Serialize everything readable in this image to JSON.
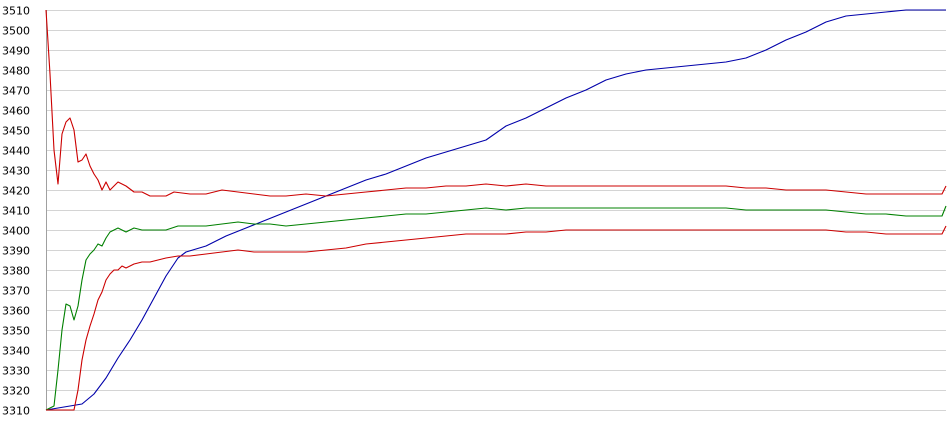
{
  "chart_data": {
    "type": "line",
    "title": "",
    "xlabel": "",
    "ylabel": "",
    "ylim": [
      3310,
      3510
    ],
    "yticks": [
      3510,
      3500,
      3490,
      3480,
      3470,
      3460,
      3450,
      3440,
      3430,
      3420,
      3410,
      3400,
      3390,
      3380,
      3370,
      3360,
      3350,
      3340,
      3330,
      3320,
      3310
    ],
    "grid": true,
    "legend": "none",
    "x_count": 150,
    "series": [
      {
        "color": "#0000aa",
        "points": [
          [
            0,
            3310
          ],
          [
            3,
            3311
          ],
          [
            6,
            3312
          ],
          [
            9,
            3313
          ],
          [
            12,
            3318
          ],
          [
            15,
            3326
          ],
          [
            18,
            3336
          ],
          [
            21,
            3345
          ],
          [
            24,
            3355
          ],
          [
            27,
            3366
          ],
          [
            30,
            3377
          ],
          [
            33,
            3386
          ],
          [
            35,
            3389
          ],
          [
            40,
            3392
          ],
          [
            45,
            3397
          ],
          [
            50,
            3401
          ],
          [
            55,
            3405
          ],
          [
            60,
            3409
          ],
          [
            65,
            3413
          ],
          [
            70,
            3417
          ],
          [
            75,
            3421
          ],
          [
            80,
            3425
          ],
          [
            85,
            3428
          ],
          [
            90,
            3432
          ],
          [
            95,
            3436
          ],
          [
            100,
            3439
          ],
          [
            105,
            3442
          ],
          [
            110,
            3445
          ],
          [
            115,
            3452
          ],
          [
            120,
            3456
          ],
          [
            125,
            3461
          ],
          [
            130,
            3466
          ],
          [
            135,
            3470
          ],
          [
            140,
            3475
          ],
          [
            145,
            3478
          ],
          [
            150,
            3480
          ],
          [
            155,
            3481
          ],
          [
            160,
            3482
          ],
          [
            165,
            3483
          ],
          [
            170,
            3484
          ],
          [
            175,
            3486
          ],
          [
            180,
            3490
          ],
          [
            185,
            3495
          ],
          [
            190,
            3499
          ],
          [
            195,
            3504
          ],
          [
            200,
            3507
          ],
          [
            205,
            3508
          ],
          [
            210,
            3509
          ],
          [
            215,
            3510
          ],
          [
            225,
            3510
          ]
        ]
      },
      {
        "color": "#cc0000",
        "points": [
          [
            0,
            3510
          ],
          [
            1,
            3478
          ],
          [
            2,
            3440
          ],
          [
            3,
            3423
          ],
          [
            4,
            3448
          ],
          [
            5,
            3454
          ],
          [
            6,
            3456
          ],
          [
            7,
            3450
          ],
          [
            8,
            3434
          ],
          [
            9,
            3435
          ],
          [
            10,
            3438
          ],
          [
            11,
            3432
          ],
          [
            12,
            3428
          ],
          [
            13,
            3425
          ],
          [
            14,
            3420
          ],
          [
            15,
            3424
          ],
          [
            16,
            3420
          ],
          [
            17,
            3422
          ],
          [
            18,
            3424
          ],
          [
            20,
            3422
          ],
          [
            22,
            3419
          ],
          [
            24,
            3419
          ],
          [
            26,
            3417
          ],
          [
            30,
            3417
          ],
          [
            32,
            3419
          ],
          [
            36,
            3418
          ],
          [
            40,
            3418
          ],
          [
            44,
            3420
          ],
          [
            48,
            3419
          ],
          [
            52,
            3418
          ],
          [
            56,
            3417
          ],
          [
            60,
            3417
          ],
          [
            65,
            3418
          ],
          [
            70,
            3417
          ],
          [
            75,
            3418
          ],
          [
            80,
            3419
          ],
          [
            85,
            3420
          ],
          [
            90,
            3421
          ],
          [
            95,
            3421
          ],
          [
            100,
            3422
          ],
          [
            105,
            3422
          ],
          [
            110,
            3423
          ],
          [
            115,
            3422
          ],
          [
            120,
            3423
          ],
          [
            125,
            3422
          ],
          [
            130,
            3422
          ],
          [
            135,
            3422
          ],
          [
            140,
            3422
          ],
          [
            145,
            3422
          ],
          [
            150,
            3422
          ],
          [
            155,
            3422
          ],
          [
            160,
            3422
          ],
          [
            165,
            3422
          ],
          [
            170,
            3422
          ],
          [
            175,
            3421
          ],
          [
            180,
            3421
          ],
          [
            185,
            3420
          ],
          [
            190,
            3420
          ],
          [
            195,
            3420
          ],
          [
            200,
            3419
          ],
          [
            205,
            3418
          ],
          [
            210,
            3418
          ],
          [
            215,
            3418
          ],
          [
            224,
            3418
          ],
          [
            225,
            3422
          ]
        ]
      },
      {
        "color": "#008000",
        "points": [
          [
            0,
            3310
          ],
          [
            2,
            3312
          ],
          [
            3,
            3330
          ],
          [
            4,
            3350
          ],
          [
            5,
            3363
          ],
          [
            6,
            3362
          ],
          [
            7,
            3355
          ],
          [
            8,
            3362
          ],
          [
            9,
            3375
          ],
          [
            10,
            3385
          ],
          [
            11,
            3388
          ],
          [
            12,
            3390
          ],
          [
            13,
            3393
          ],
          [
            14,
            3392
          ],
          [
            15,
            3396
          ],
          [
            16,
            3399
          ],
          [
            17,
            3400
          ],
          [
            18,
            3401
          ],
          [
            20,
            3399
          ],
          [
            22,
            3401
          ],
          [
            24,
            3400
          ],
          [
            26,
            3400
          ],
          [
            30,
            3400
          ],
          [
            33,
            3402
          ],
          [
            36,
            3402
          ],
          [
            40,
            3402
          ],
          [
            44,
            3403
          ],
          [
            48,
            3404
          ],
          [
            52,
            3403
          ],
          [
            56,
            3403
          ],
          [
            60,
            3402
          ],
          [
            65,
            3403
          ],
          [
            70,
            3404
          ],
          [
            75,
            3405
          ],
          [
            80,
            3406
          ],
          [
            85,
            3407
          ],
          [
            90,
            3408
          ],
          [
            95,
            3408
          ],
          [
            100,
            3409
          ],
          [
            105,
            3410
          ],
          [
            110,
            3411
          ],
          [
            115,
            3410
          ],
          [
            120,
            3411
          ],
          [
            125,
            3411
          ],
          [
            130,
            3411
          ],
          [
            135,
            3411
          ],
          [
            140,
            3411
          ],
          [
            145,
            3411
          ],
          [
            150,
            3411
          ],
          [
            155,
            3411
          ],
          [
            160,
            3411
          ],
          [
            165,
            3411
          ],
          [
            170,
            3411
          ],
          [
            175,
            3410
          ],
          [
            180,
            3410
          ],
          [
            185,
            3410
          ],
          [
            190,
            3410
          ],
          [
            195,
            3410
          ],
          [
            200,
            3409
          ],
          [
            205,
            3408
          ],
          [
            210,
            3408
          ],
          [
            215,
            3407
          ],
          [
            224,
            3407
          ],
          [
            225,
            3412
          ]
        ]
      },
      {
        "color": "#cc0000",
        "points": [
          [
            0,
            3310
          ],
          [
            7,
            3310
          ],
          [
            8,
            3320
          ],
          [
            9,
            3335
          ],
          [
            10,
            3345
          ],
          [
            11,
            3352
          ],
          [
            12,
            3358
          ],
          [
            13,
            3365
          ],
          [
            14,
            3369
          ],
          [
            15,
            3375
          ],
          [
            16,
            3378
          ],
          [
            17,
            3380
          ],
          [
            18,
            3380
          ],
          [
            19,
            3382
          ],
          [
            20,
            3381
          ],
          [
            22,
            3383
          ],
          [
            24,
            3384
          ],
          [
            26,
            3384
          ],
          [
            28,
            3385
          ],
          [
            30,
            3386
          ],
          [
            33,
            3387
          ],
          [
            36,
            3387
          ],
          [
            40,
            3388
          ],
          [
            44,
            3389
          ],
          [
            48,
            3390
          ],
          [
            52,
            3389
          ],
          [
            56,
            3389
          ],
          [
            60,
            3389
          ],
          [
            65,
            3389
          ],
          [
            70,
            3390
          ],
          [
            75,
            3391
          ],
          [
            80,
            3393
          ],
          [
            85,
            3394
          ],
          [
            90,
            3395
          ],
          [
            95,
            3396
          ],
          [
            100,
            3397
          ],
          [
            105,
            3398
          ],
          [
            110,
            3398
          ],
          [
            115,
            3398
          ],
          [
            120,
            3399
          ],
          [
            125,
            3399
          ],
          [
            130,
            3400
          ],
          [
            135,
            3400
          ],
          [
            140,
            3400
          ],
          [
            145,
            3400
          ],
          [
            150,
            3400
          ],
          [
            155,
            3400
          ],
          [
            160,
            3400
          ],
          [
            165,
            3400
          ],
          [
            170,
            3400
          ],
          [
            175,
            3400
          ],
          [
            180,
            3400
          ],
          [
            185,
            3400
          ],
          [
            190,
            3400
          ],
          [
            195,
            3400
          ],
          [
            200,
            3399
          ],
          [
            205,
            3399
          ],
          [
            210,
            3398
          ],
          [
            215,
            3398
          ],
          [
            224,
            3398
          ],
          [
            225,
            3402
          ]
        ]
      }
    ]
  }
}
